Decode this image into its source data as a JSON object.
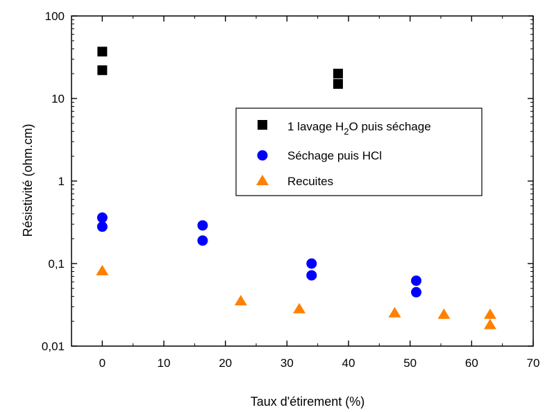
{
  "chart_data": {
    "type": "scatter",
    "xlabel": "Taux d'étirement (%)",
    "ylabel": "Résistivité (ohm.cm)",
    "xlim": [
      -5,
      70
    ],
    "ylim": [
      0.01,
      100
    ],
    "yscale": "log",
    "grid": false,
    "legend_placement": "center-right",
    "x_ticks": [
      0,
      10,
      20,
      30,
      40,
      50,
      60,
      70
    ],
    "x_tick_labels": [
      "0",
      "10",
      "20",
      "30",
      "40",
      "50",
      "60",
      "70"
    ],
    "y_ticks": [
      0.01,
      0.1,
      1,
      10,
      100
    ],
    "y_tick_labels": [
      "0,01",
      "0,1",
      "1",
      "10",
      "100"
    ],
    "series": [
      {
        "name": "1 lavage H2O puis séchage",
        "legend_main": "1 lavage H",
        "legend_sub": "2",
        "legend_rest": "O puis séchage",
        "marker": "square",
        "color": "#000000",
        "points": [
          [
            0,
            37
          ],
          [
            0,
            22
          ],
          [
            38.3,
            20
          ],
          [
            38.3,
            15
          ]
        ]
      },
      {
        "name": "Séchage puis HCl",
        "legend_label": "Séchage puis HCl",
        "marker": "circle",
        "color": "#0000ff",
        "points": [
          [
            0,
            0.36
          ],
          [
            0,
            0.28
          ],
          [
            16.3,
            0.29
          ],
          [
            16.3,
            0.19
          ],
          [
            34,
            0.1
          ],
          [
            34,
            0.072
          ],
          [
            51,
            0.062
          ],
          [
            51,
            0.045
          ]
        ]
      },
      {
        "name": "Recuites",
        "legend_label": "Recuites",
        "marker": "triangle",
        "color": "#ff8000",
        "points": [
          [
            0,
            0.081
          ],
          [
            22.5,
            0.035
          ],
          [
            32,
            0.028
          ],
          [
            47.5,
            0.025
          ],
          [
            55.5,
            0.024
          ],
          [
            63,
            0.024
          ],
          [
            63,
            0.018
          ]
        ]
      }
    ]
  }
}
